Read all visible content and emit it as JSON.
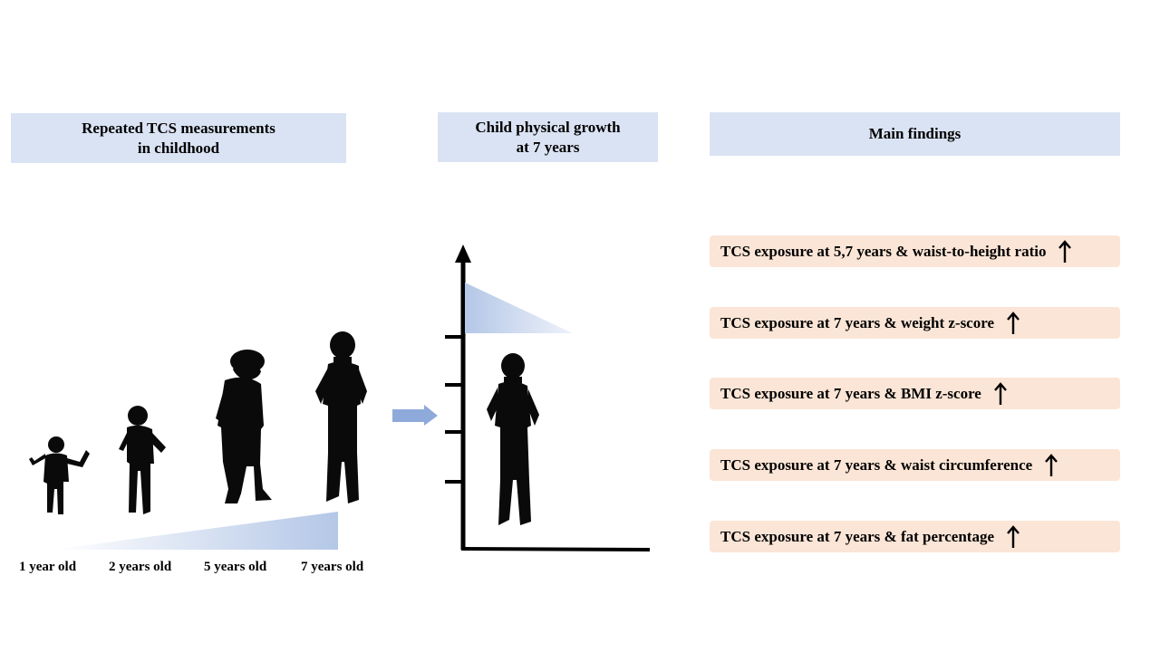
{
  "headers": {
    "measurements": [
      "Repeated TCS measurements",
      "in childhood"
    ],
    "growth": [
      "Child physical growth",
      "at 7 years"
    ],
    "findings": "Main findings"
  },
  "ages": [
    "1 year old",
    "2 years old",
    "5 years old",
    "7 years old"
  ],
  "findings": [
    {
      "text": "TCS exposure at 5,7 years & waist-to-height ratio",
      "icon": "up-arrow-icon"
    },
    {
      "text": "TCS exposure at 7 years & weight z-score",
      "icon": "up-arrow-icon"
    },
    {
      "text": "TCS exposure at 7 years & BMI z-score",
      "icon": "up-arrow-icon"
    },
    {
      "text": "TCS exposure at 7 years & waist circumference",
      "icon": "up-arrow-icon"
    },
    {
      "text": "TCS exposure at 7 years & fat percentage",
      "icon": "up-arrow-icon"
    }
  ],
  "colors": {
    "header_bg": "#dae3f3",
    "finding_bg": "#fbe5d6",
    "accent_blue": "#8eaadb"
  }
}
